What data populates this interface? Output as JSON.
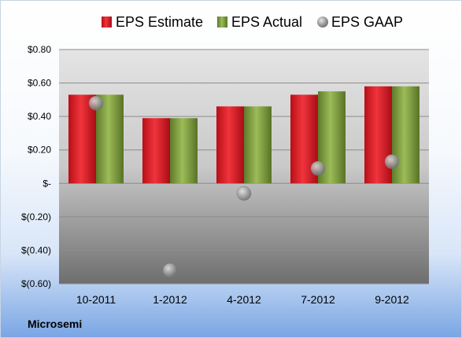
{
  "chart_data": {
    "type": "bar",
    "categories": [
      "10-2011",
      "1-2012",
      "4-2012",
      "7-2012",
      "9-2012"
    ],
    "series": [
      {
        "name": "EPS Estimate",
        "values": [
          0.53,
          0.39,
          0.46,
          0.53,
          0.58
        ],
        "color": "#e0212a",
        "kind": "bar"
      },
      {
        "name": "EPS Actual",
        "values": [
          0.53,
          0.39,
          0.46,
          0.55,
          0.58
        ],
        "color": "#7a9a3a",
        "kind": "bar"
      },
      {
        "name": "EPS GAAP",
        "values": [
          0.48,
          -0.52,
          -0.06,
          0.09,
          0.13
        ],
        "color": "#9a9a9a",
        "kind": "scatter"
      }
    ],
    "y_ticks": [
      {
        "value": 0.8,
        "label": "$0.80"
      },
      {
        "value": 0.6,
        "label": "$0.60"
      },
      {
        "value": 0.4,
        "label": "$0.40"
      },
      {
        "value": 0.2,
        "label": "$0.20"
      },
      {
        "value": 0,
        "label": "$-"
      },
      {
        "value": -0.2,
        "label": "$(0.20)"
      },
      {
        "value": -0.4,
        "label": "$(0.40)"
      },
      {
        "value": -0.6,
        "label": "$(0.60)"
      }
    ],
    "ylim": [
      -0.6,
      0.8
    ],
    "grid": true,
    "legend_position": "top",
    "company": "Microsemi"
  }
}
